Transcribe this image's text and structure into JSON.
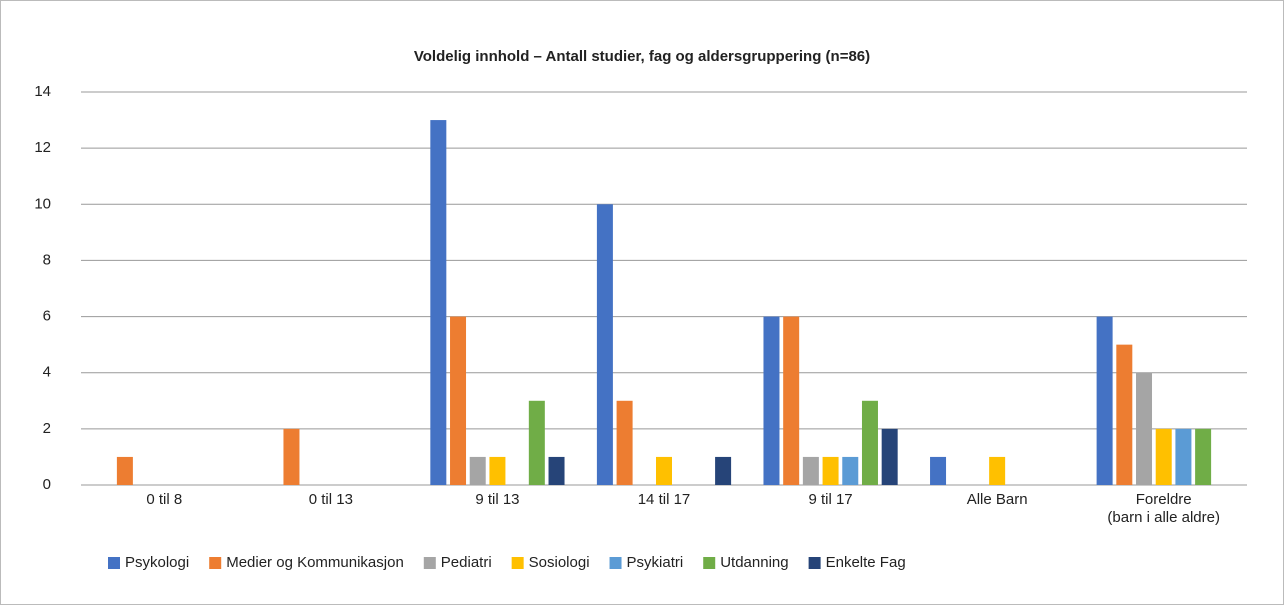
{
  "chart_data": {
    "type": "bar",
    "title": "Voldelig innhold – Antall studier, fag og aldersgruppering (n=86)",
    "categories": [
      "0 til 8",
      "0 til 13",
      "9 til 13",
      "14 til 17",
      "9 til 17",
      "Alle Barn",
      "Foreldre\n(barn i alle aldre)"
    ],
    "series": [
      {
        "name": "Psykologi",
        "color": "#4472c4",
        "values": [
          0,
          0,
          13,
          10,
          6,
          1,
          6
        ]
      },
      {
        "name": "Medier og Kommunikasjon",
        "color": "#ed7d31",
        "values": [
          1,
          2,
          6,
          3,
          6,
          0,
          5
        ]
      },
      {
        "name": "Pediatri",
        "color": "#a5a5a5",
        "values": [
          0,
          0,
          1,
          0,
          1,
          0,
          4
        ]
      },
      {
        "name": "Sosiologi",
        "color": "#ffc000",
        "values": [
          0,
          0,
          1,
          1,
          1,
          1,
          2
        ]
      },
      {
        "name": "Psykiatri",
        "color": "#5b9bd5",
        "values": [
          0,
          0,
          0,
          0,
          1,
          0,
          2
        ]
      },
      {
        "name": "Utdanning",
        "color": "#70ad47",
        "values": [
          0,
          0,
          3,
          0,
          3,
          0,
          2
        ]
      },
      {
        "name": "Enkelte Fag",
        "color": "#264478",
        "values": [
          0,
          0,
          1,
          1,
          2,
          0,
          0
        ]
      }
    ],
    "ylim": [
      0,
      14
    ],
    "yticks": [
      0,
      2,
      4,
      6,
      8,
      10,
      12,
      14
    ],
    "grid": true,
    "legend": "bottom"
  }
}
